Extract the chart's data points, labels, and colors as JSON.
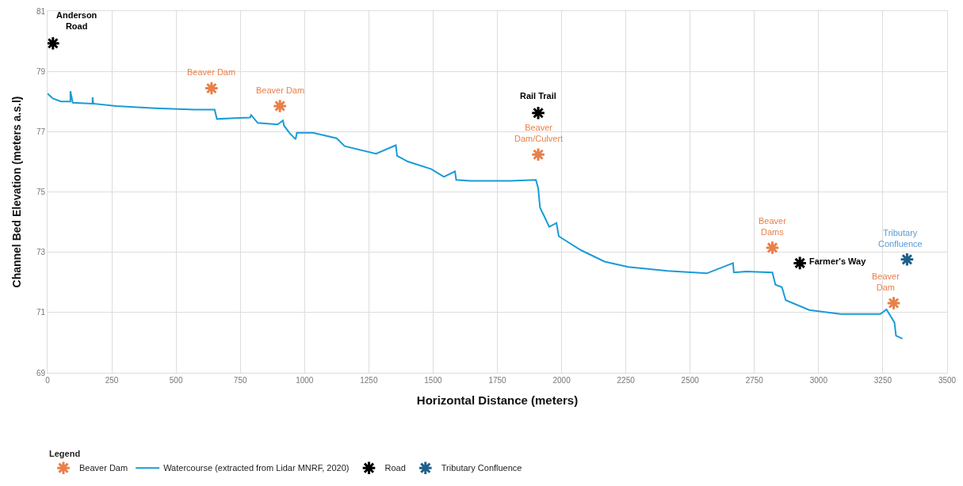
{
  "chart_data": {
    "type": "line",
    "xlabel": "Horizontal Distance (meters)",
    "ylabel": "Channel Bed Elevation (meters a.s.l)",
    "legend_title": "Legend",
    "xlim": [
      0,
      3500
    ],
    "xticks": [
      0,
      250,
      500,
      750,
      1000,
      1250,
      1500,
      1750,
      2000,
      2250,
      2500,
      2750,
      3000,
      3250,
      3500
    ],
    "ylim": [
      69,
      81
    ],
    "yticks": [
      69,
      71,
      73,
      75,
      77,
      79,
      81
    ],
    "grid": true,
    "legend": "bottom left",
    "series": [
      {
        "name": "Beaver Dam",
        "type": "scatter",
        "marker": "cross",
        "color": "#e8804a",
        "x": [
          638,
          904,
          1909,
          2820,
          3292
        ],
        "values": [
          78.44,
          77.85,
          76.24,
          73.15,
          71.31
        ]
      },
      {
        "name": "Watercourse (extracted from Lidar MNRF, 2020)",
        "marker": "none",
        "color": "#1a9bd7",
        "x": [
          0,
          21,
          52,
          89,
          89,
          98,
          175,
          175,
          178,
          267,
          420,
          573,
          650,
          659,
          726,
          788,
          792,
          818,
          895,
          916,
          920,
          941,
          965,
          970,
          1033,
          1125,
          1156,
          1278,
          1355,
          1360,
          1401,
          1493,
          1542,
          1585,
          1590,
          1646,
          1799,
          1900,
          1909,
          1916,
          1931,
          1952,
          1980,
          1989,
          2075,
          2167,
          2259,
          2412,
          2565,
          2667,
          2670,
          2719,
          2820,
          2832,
          2857,
          2872,
          2964,
          3086,
          3240,
          3264,
          3295,
          3301,
          3326
        ],
        "values": [
          78.26,
          78.1,
          78.0,
          78.0,
          78.34,
          77.96,
          77.93,
          78.14,
          77.93,
          77.85,
          77.78,
          77.73,
          77.73,
          77.42,
          77.45,
          77.47,
          77.55,
          77.29,
          77.24,
          77.37,
          77.2,
          76.96,
          76.75,
          76.96,
          76.96,
          76.78,
          76.52,
          76.27,
          76.55,
          76.2,
          76.01,
          75.76,
          75.5,
          75.68,
          75.4,
          75.37,
          75.37,
          75.4,
          75.12,
          74.48,
          74.22,
          73.84,
          73.97,
          73.53,
          73.07,
          72.69,
          72.51,
          72.38,
          72.3,
          72.64,
          72.33,
          72.36,
          72.33,
          71.92,
          71.84,
          71.41,
          71.08,
          70.95,
          70.95,
          71.1,
          70.67,
          70.23,
          70.13
        ]
      },
      {
        "name": "Road",
        "type": "scatter",
        "marker": "cross",
        "color": "#000000",
        "x": [
          21,
          1909,
          2927
        ],
        "values": [
          79.93,
          77.62,
          72.64
        ]
      },
      {
        "name": "Tributary Confluence",
        "type": "scatter",
        "marker": "cross",
        "color": "#1f5f8b",
        "x": [
          3344
        ],
        "values": [
          72.76
        ]
      }
    ],
    "annotations": [
      {
        "text": "Anderson Road",
        "x": 21,
        "y": 79.93
      },
      {
        "text": "Beaver Dam",
        "x": 638,
        "y": 78.44
      },
      {
        "text": "Beaver Dam",
        "x": 904,
        "y": 77.85
      },
      {
        "text": "Rail Trail",
        "x": 1909,
        "y": 77.62
      },
      {
        "text": "Beaver Dam/Culvert",
        "x": 1909,
        "y": 76.24
      },
      {
        "text": "Beaver Dams",
        "x": 2820,
        "y": 73.15
      },
      {
        "text": "Farmer's Way",
        "x": 2927,
        "y": 72.64
      },
      {
        "text": "Beaver Dam",
        "x": 3292,
        "y": 71.31
      },
      {
        "text": "Tributary Confluence",
        "x": 3344,
        "y": 72.76
      }
    ]
  }
}
